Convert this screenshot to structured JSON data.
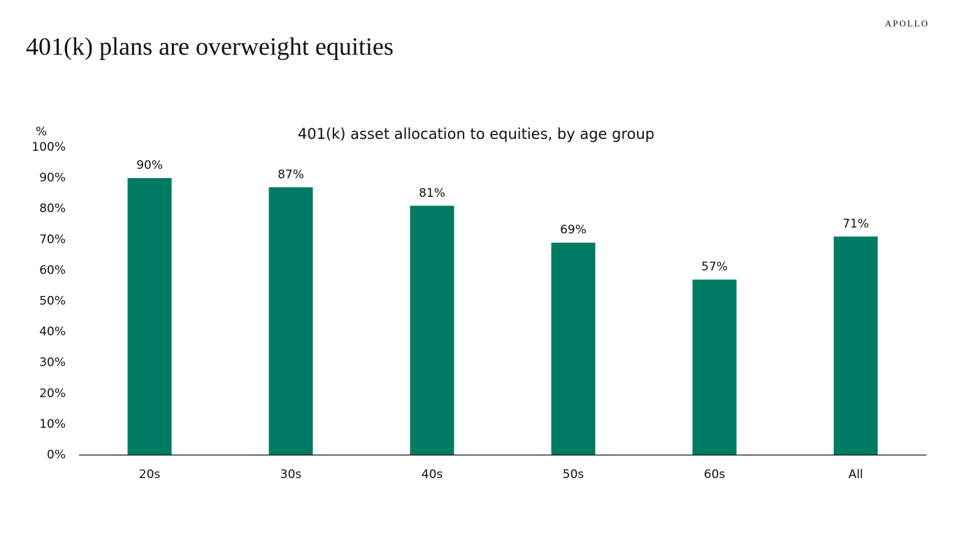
{
  "header": {
    "brand": "APOLLO",
    "title": "401(k) plans are overweight equities"
  },
  "chart_data": {
    "type": "bar",
    "title": "401(k) asset allocation to equities, by age group",
    "y_label": "%",
    "categories": [
      "20s",
      "30s",
      "40s",
      "50s",
      "60s",
      "All"
    ],
    "values": [
      90,
      87,
      81,
      69,
      57,
      71
    ],
    "value_labels": [
      "90%",
      "87%",
      "81%",
      "69%",
      "57%",
      "71%"
    ],
    "color": "#007b63",
    "ylim": [
      0,
      100
    ],
    "yticks": [
      {
        "value": 0,
        "label": "0%"
      },
      {
        "value": 10,
        "label": "10%"
      },
      {
        "value": 20,
        "label": "20%"
      },
      {
        "value": 30,
        "label": "30%"
      },
      {
        "value": 40,
        "label": "40%"
      },
      {
        "value": 50,
        "label": "50%"
      },
      {
        "value": 60,
        "label": "60%"
      },
      {
        "value": 70,
        "label": "70%"
      },
      {
        "value": 80,
        "label": "80%"
      },
      {
        "value": 90,
        "label": "90%"
      },
      {
        "value": 100,
        "label": "100%"
      }
    ],
    "grid": false
  }
}
